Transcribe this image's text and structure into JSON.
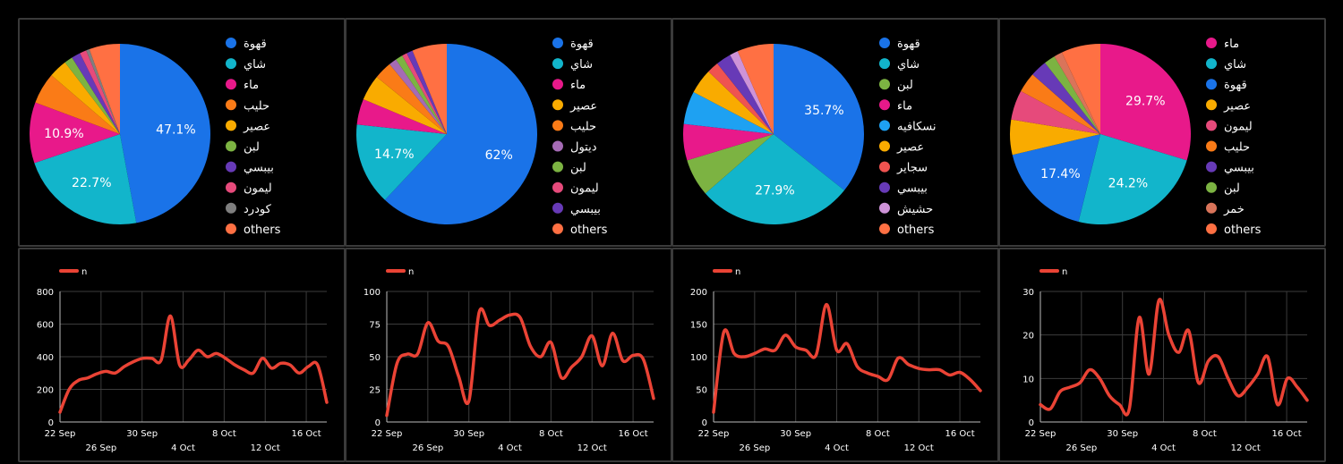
{
  "colors": {
    "background": "#000000",
    "panel_border": "#3a3a3a",
    "grid": "#3c3c3c",
    "line": "#ea4335"
  },
  "chart_data": [
    {
      "type": "pie",
      "slices": [
        {
          "label": "قهوة",
          "value": 47.1,
          "color": "#1a73e8",
          "display": "47.1%"
        },
        {
          "label": "شاي",
          "value": 22.7,
          "color": "#12b5cb",
          "display": "22.7%"
        },
        {
          "label": "ماء",
          "value": 10.9,
          "color": "#e8198a",
          "display": "10.9%"
        },
        {
          "label": "حليب",
          "value": 5.6,
          "color": "#fa7b17",
          "display": ""
        },
        {
          "label": "عصير",
          "value": 3.3,
          "color": "#f9ab00",
          "display": ""
        },
        {
          "label": "لبن",
          "value": 1.5,
          "color": "#7cb342",
          "display": ""
        },
        {
          "label": "بيبسي",
          "value": 1.6,
          "color": "#673ab7",
          "display": ""
        },
        {
          "label": "ليمون",
          "value": 1.2,
          "color": "#e64a7b",
          "display": ""
        },
        {
          "label": "كودرد",
          "value": 0.6,
          "color": "#7f7f7f",
          "display": ""
        },
        {
          "label": "others",
          "value": 5.5,
          "color": "#ff7043",
          "display": ""
        }
      ]
    },
    {
      "type": "pie",
      "slices": [
        {
          "label": "قهوة",
          "value": 62.0,
          "color": "#1a73e8",
          "display": "62%"
        },
        {
          "label": "شاي",
          "value": 14.7,
          "color": "#12b5cb",
          "display": "14.7%"
        },
        {
          "label": "ماء",
          "value": 4.6,
          "color": "#e8198a",
          "display": ""
        },
        {
          "label": "عصير",
          "value": 4.6,
          "color": "#f9ab00",
          "display": ""
        },
        {
          "label": "حليب",
          "value": 3.2,
          "color": "#fa7b17",
          "display": ""
        },
        {
          "label": "ديتول",
          "value": 1.4,
          "color": "#a56bb5",
          "display": ""
        },
        {
          "label": "لبن",
          "value": 1.3,
          "color": "#7cb342",
          "display": ""
        },
        {
          "label": "ليمون",
          "value": 0.9,
          "color": "#e64a7b",
          "display": ""
        },
        {
          "label": "بيبسي",
          "value": 1.1,
          "color": "#673ab7",
          "display": ""
        },
        {
          "label": "others",
          "value": 6.2,
          "color": "#ff7043",
          "display": ""
        }
      ]
    },
    {
      "type": "pie",
      "slices": [
        {
          "label": "قهوة",
          "value": 35.7,
          "color": "#1a73e8",
          "display": "35.7%"
        },
        {
          "label": "شاي",
          "value": 27.9,
          "color": "#12b5cb",
          "display": "27.9%"
        },
        {
          "label": "لبن",
          "value": 6.7,
          "color": "#7cb342",
          "display": ""
        },
        {
          "label": "ماء",
          "value": 6.5,
          "color": "#e8198a",
          "display": ""
        },
        {
          "label": "نسكافيه",
          "value": 5.9,
          "color": "#1ea1f2",
          "display": ""
        },
        {
          "label": "عصير",
          "value": 4.5,
          "color": "#f9ab00",
          "display": ""
        },
        {
          "label": "سجاير",
          "value": 2.1,
          "color": "#ef5350",
          "display": ""
        },
        {
          "label": "بيبسي",
          "value": 2.7,
          "color": "#673ab7",
          "display": ""
        },
        {
          "label": "حشيش",
          "value": 1.5,
          "color": "#ce93d8",
          "display": ""
        },
        {
          "label": "others",
          "value": 6.5,
          "color": "#ff7043",
          "display": ""
        }
      ]
    },
    {
      "type": "pie",
      "slices": [
        {
          "label": "ماء",
          "value": 29.7,
          "color": "#e8198a",
          "display": "29.7%"
        },
        {
          "label": "شاي",
          "value": 24.2,
          "color": "#12b5cb",
          "display": "24.2%"
        },
        {
          "label": "قهوة",
          "value": 17.4,
          "color": "#1a73e8",
          "display": "17.4%"
        },
        {
          "label": "عصير",
          "value": 6.3,
          "color": "#f9ab00",
          "display": ""
        },
        {
          "label": "ليمون",
          "value": 5.3,
          "color": "#e64a7b",
          "display": ""
        },
        {
          "label": "حليب",
          "value": 3.6,
          "color": "#fa7b17",
          "display": ""
        },
        {
          "label": "بيبسي",
          "value": 3.0,
          "color": "#673ab7",
          "display": ""
        },
        {
          "label": "لبن",
          "value": 2.0,
          "color": "#7cb342",
          "display": ""
        },
        {
          "label": "خمر",
          "value": 1.5,
          "color": "#d9745a",
          "display": ""
        },
        {
          "label": "others",
          "value": 7.0,
          "color": "#ff7043",
          "display": ""
        }
      ]
    },
    {
      "type": "line",
      "legend": "n",
      "ylim": [
        0,
        800
      ],
      "yticks": [
        0,
        200,
        400,
        600,
        800
      ],
      "x_start": "2022-09-22",
      "xticks_row1": [
        "22 Sep",
        "30 Sep",
        "8 Oct",
        "16 Oct"
      ],
      "xticks_row2": [
        "26 Sep",
        "4 Oct",
        "12 Oct"
      ],
      "values": [
        60,
        200,
        255,
        270,
        295,
        310,
        300,
        340,
        370,
        390,
        390,
        380,
        650,
        350,
        380,
        440,
        400,
        420,
        390,
        350,
        320,
        300,
        390,
        330,
        360,
        350,
        300,
        340,
        350,
        120
      ]
    },
    {
      "type": "line",
      "legend": "n",
      "ylim": [
        0,
        100
      ],
      "yticks": [
        0,
        25,
        50,
        75,
        100
      ],
      "x_start": "2022-09-22",
      "xticks_row1": [
        "22 Sep",
        "30 Sep",
        "8 Oct",
        "16 Oct"
      ],
      "xticks_row2": [
        "26 Sep",
        "4 Oct",
        "12 Oct"
      ],
      "values": [
        5,
        45,
        52,
        52,
        76,
        62,
        58,
        35,
        16,
        84,
        74,
        78,
        82,
        80,
        58,
        50,
        61,
        34,
        42,
        50,
        66,
        43,
        68,
        47,
        51,
        48,
        18
      ]
    },
    {
      "type": "line",
      "legend": "n",
      "ylim": [
        0,
        200
      ],
      "yticks": [
        0,
        50,
        100,
        150,
        200
      ],
      "x_start": "2022-09-22",
      "xticks_row1": [
        "22 Sep",
        "30 Sep",
        "8 Oct",
        "16 Oct"
      ],
      "xticks_row2": [
        "26 Sep",
        "4 Oct",
        "12 Oct"
      ],
      "values": [
        15,
        138,
        105,
        100,
        105,
        112,
        110,
        133,
        115,
        110,
        103,
        180,
        110,
        120,
        85,
        75,
        70,
        65,
        98,
        88,
        82,
        80,
        80,
        72,
        76,
        65,
        48
      ]
    },
    {
      "type": "line",
      "legend": "n",
      "ylim": [
        0,
        30
      ],
      "yticks": [
        0,
        10,
        20,
        30
      ],
      "x_start": "2022-09-22",
      "xticks_row1": [
        "22 Sep",
        "30 Sep",
        "8 Oct",
        "16 Oct"
      ],
      "xticks_row2": [
        "26 Sep",
        "4 Oct",
        "12 Oct"
      ],
      "values": [
        4,
        3,
        7,
        8,
        9,
        12,
        10,
        6,
        4,
        3,
        24,
        11,
        28,
        20,
        16,
        21,
        9,
        14,
        15,
        10,
        6,
        8,
        11,
        15,
        4,
        10,
        8,
        5
      ]
    }
  ]
}
